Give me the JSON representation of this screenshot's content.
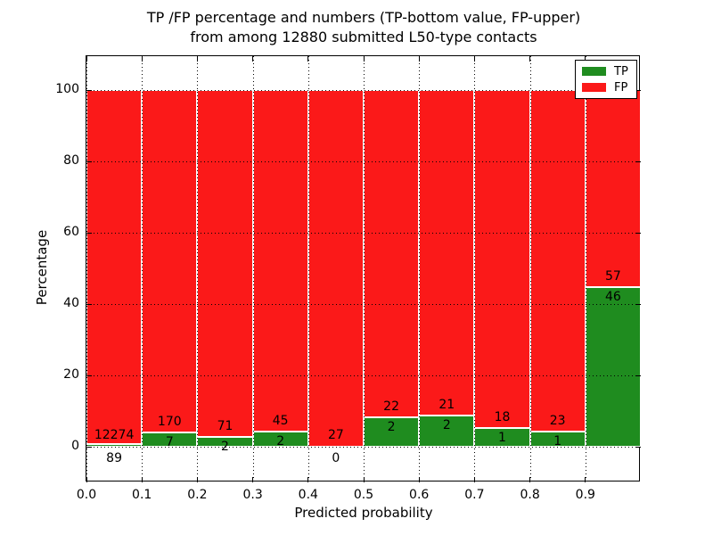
{
  "chart_data": {
    "type": "bar",
    "stacked": true,
    "normalized": "percent_of_bin_total",
    "title": "TP /FP percentage and numbers (TP-bottom value, FP-upper)",
    "subtitle": "from among 12880 submitted L50-type contacts",
    "xlabel": "Predicted probability",
    "ylabel": "Percentage",
    "total_contacts": 12880,
    "xlim": [
      0.0,
      1.0
    ],
    "ylim": [
      -10,
      110
    ],
    "yticks": [
      0,
      20,
      40,
      60,
      80,
      100
    ],
    "xtick_labels": [
      "0.0",
      "0.1",
      "0.2",
      "0.3",
      "0.4",
      "0.5",
      "0.6",
      "0.7",
      "0.8",
      "0.9"
    ],
    "grid": "dotted, drawn above bars",
    "legend_position": "upper right",
    "categories": [
      "0.0-0.1",
      "0.1-0.2",
      "0.2-0.3",
      "0.3-0.4",
      "0.4-0.5",
      "0.5-0.6",
      "0.6-0.7",
      "0.7-0.8",
      "0.8-0.9",
      "0.9-1.0"
    ],
    "series": [
      {
        "name": "TP",
        "color": "#1f8c1f",
        "counts": [
          89,
          7,
          2,
          2,
          0,
          2,
          2,
          1,
          1,
          46
        ]
      },
      {
        "name": "FP",
        "color": "#fb1919",
        "counts": [
          12274,
          170,
          71,
          45,
          27,
          22,
          21,
          18,
          23,
          57
        ]
      }
    ],
    "tp_percent_of_bin": [
      0.72,
      3.95,
      2.74,
      4.26,
      0.0,
      8.33,
      8.7,
      5.26,
      4.17,
      44.66
    ],
    "bar_total_percent": 100
  },
  "legend": {
    "items": [
      {
        "label": "TP",
        "color": "#1f8c1f"
      },
      {
        "label": "FP",
        "color": "#fb1919"
      }
    ]
  },
  "colors": {
    "tp_green": "#1f8c1f",
    "fp_red": "#fb1919",
    "background": "#ffffff",
    "text": "#000000",
    "grid": "#000000",
    "bar_edge": "#ffffff",
    "axis": "#000000"
  }
}
